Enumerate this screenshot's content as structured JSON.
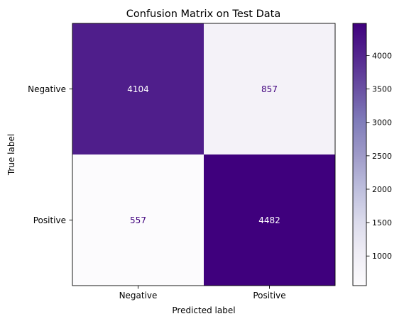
{
  "chart_data": {
    "type": "heatmap",
    "title": "Confusion Matrix on Test Data",
    "xlabel": "Predicted label",
    "ylabel": "True label",
    "x_categories": [
      "Negative",
      "Positive"
    ],
    "y_categories": [
      "Negative",
      "Positive"
    ],
    "values": [
      [
        4104,
        857
      ],
      [
        557,
        4482
      ]
    ],
    "colormap": "Purples",
    "color_min": 557,
    "color_max": 4482,
    "colorbar_ticks": [
      1000,
      1500,
      2000,
      2500,
      3000,
      3500,
      4000
    ],
    "colorbar_tick_labels": [
      "1000",
      "1500",
      "2000",
      "2500",
      "3000",
      "3500",
      "4000"
    ],
    "colors": {
      "low": "#fcfbfd",
      "high": "#3f007d",
      "text_on_dark": "#ffffff",
      "text_on_light": "#3f007d",
      "frame": "#000000"
    }
  }
}
